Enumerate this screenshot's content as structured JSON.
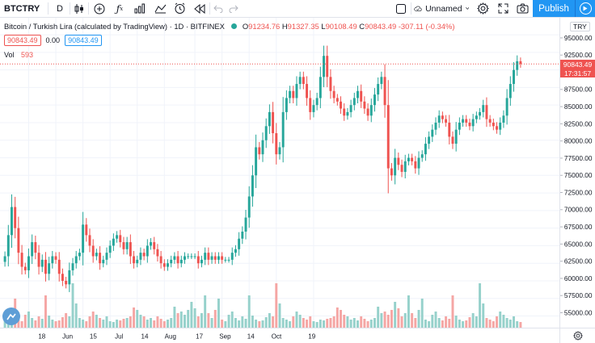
{
  "toolbar": {
    "symbol": "BTCTRY",
    "interval": "D",
    "layout_name": "Unnamed",
    "publish_label": "Publish"
  },
  "legend": {
    "title": "Bitcoin / Turkish Lira (calculated by TradingView) · 1D · BITFINEX",
    "open_label": "O",
    "open": "91234.76",
    "high_label": "H",
    "high": "91327.35",
    "low_label": "L",
    "low": "90108.49",
    "close_label": "C",
    "close": "90843.49",
    "change": "-307.11 (-0.34%)",
    "bid": "90843.49",
    "spread": "0.00",
    "ask": "90843.49",
    "volume_label": "Vol",
    "volume": "593"
  },
  "price_axis": {
    "currency": "TRY",
    "ticks": [
      "95000.00",
      "92500.00",
      "90000.00",
      "87500.00",
      "85000.00",
      "82500.00",
      "80000.00",
      "77500.00",
      "75000.00",
      "72500.00",
      "70000.00",
      "67500.00",
      "65000.00",
      "62500.00",
      "60000.00",
      "57500.00",
      "55000.00"
    ],
    "last_price": "90843.49",
    "countdown": "17:31:57"
  },
  "time_axis": {
    "labels": [
      "18",
      "Jun",
      "15",
      "Jul",
      "14",
      "Aug",
      "17",
      "Sep",
      "14",
      "Oct",
      "19"
    ]
  },
  "colors": {
    "up": "#26a69a",
    "down": "#ef5350",
    "up_volume": "#96d1cb",
    "down_volume": "#f5a6a4",
    "accent": "#2196f3"
  },
  "chart_data": {
    "type": "candlestick",
    "title": "Bitcoin / Turkish Lira (calculated by TradingView) · 1D · BITFINEX",
    "xlabel": "",
    "ylabel": "",
    "ylim": [
      53800,
      96500
    ],
    "price_ticks": [
      95000,
      92500,
      90000,
      87500,
      85000,
      82500,
      80000,
      77500,
      75000,
      72500,
      70000,
      67500,
      65000,
      62500,
      60000,
      57500,
      55000
    ],
    "x_tick_labels": [
      "18",
      "Jun",
      "15",
      "Jul",
      "14",
      "Aug",
      "17",
      "Sep",
      "14",
      "Oct",
      "19"
    ],
    "x_tick_index": [
      7,
      15,
      23,
      31,
      39,
      47,
      56,
      64,
      72,
      80,
      91
    ],
    "series_close": [
      63500,
      66500,
      70500,
      67500,
      64000,
      62000,
      61500,
      63500,
      65500,
      64000,
      62000,
      63000,
      61000,
      62500,
      63500,
      63000,
      61000,
      60000,
      59500,
      61500,
      62500,
      63500,
      64000,
      68000,
      66500,
      65000,
      63500,
      64000,
      62500,
      63000,
      64000,
      65000,
      66000,
      66500,
      65500,
      64500,
      65500,
      63500,
      62500,
      63000,
      64000,
      63500,
      65000,
      65500,
      64500,
      63500,
      62500,
      62000,
      62500,
      63000,
      63500,
      62500,
      63000,
      63500,
      63500,
      63500,
      63500,
      62500,
      63000,
      64000,
      63000,
      63500,
      63000,
      63500,
      63000,
      63000,
      63000,
      64000,
      64500,
      66000,
      67000,
      69000,
      72000,
      75000,
      79000,
      78000,
      80000,
      82000,
      84000,
      81000,
      78000,
      79000,
      84000,
      86000,
      87000,
      86000,
      88000,
      89000,
      88000,
      86000,
      84000,
      85000,
      86000,
      89000,
      92000,
      89000,
      87000,
      86000,
      85500,
      84500,
      83500,
      84000,
      85000,
      86000,
      87000,
      85500,
      84500,
      83500,
      85000,
      86500,
      88000,
      89000,
      85000,
      76000,
      75000,
      77500,
      76500,
      75500,
      77000,
      77500,
      77000,
      76000,
      77500,
      78000,
      79500,
      80500,
      81500,
      82500,
      83500,
      83000,
      82500,
      80500,
      79500,
      81500,
      82500,
      83000,
      82500,
      82000,
      83000,
      83500,
      84000,
      85000,
      83000,
      82500,
      82000,
      81500,
      82500,
      83500,
      86000,
      88000,
      90000,
      91234,
      90843
    ],
    "volume": [
      [
        0,
        18
      ],
      [
        1,
        12
      ],
      [
        2,
        22
      ],
      [
        3,
        36
      ],
      [
        4,
        10
      ],
      [
        5,
        8
      ],
      [
        6,
        16
      ],
      [
        7,
        20
      ],
      [
        8,
        12
      ],
      [
        9,
        9
      ],
      [
        10,
        14
      ],
      [
        11,
        11
      ],
      [
        12,
        40
      ],
      [
        13,
        15
      ],
      [
        14,
        10
      ],
      [
        15,
        8
      ],
      [
        16,
        9
      ],
      [
        17,
        13
      ],
      [
        18,
        18
      ],
      [
        19,
        14
      ],
      [
        20,
        55
      ],
      [
        21,
        30
      ],
      [
        22,
        12
      ],
      [
        23,
        10
      ],
      [
        24,
        8
      ],
      [
        25,
        14
      ],
      [
        26,
        20
      ],
      [
        27,
        16
      ],
      [
        28,
        12
      ],
      [
        29,
        10
      ],
      [
        30,
        14
      ],
      [
        31,
        8
      ],
      [
        32,
        7
      ],
      [
        33,
        10
      ],
      [
        34,
        9
      ],
      [
        35,
        11
      ],
      [
        36,
        12
      ],
      [
        37,
        14
      ],
      [
        38,
        25
      ],
      [
        39,
        22
      ],
      [
        40,
        16
      ],
      [
        41,
        14
      ],
      [
        42,
        10
      ],
      [
        43,
        12
      ],
      [
        44,
        9
      ],
      [
        45,
        14
      ],
      [
        46,
        11
      ],
      [
        47,
        8
      ],
      [
        48,
        10
      ],
      [
        49,
        12
      ],
      [
        50,
        26
      ],
      [
        51,
        18
      ],
      [
        52,
        20
      ],
      [
        53,
        16
      ],
      [
        54,
        22
      ],
      [
        55,
        32
      ],
      [
        56,
        24
      ],
      [
        57,
        14
      ],
      [
        58,
        18
      ],
      [
        59,
        40
      ]
    ],
    "last_close": 90843.49
  }
}
